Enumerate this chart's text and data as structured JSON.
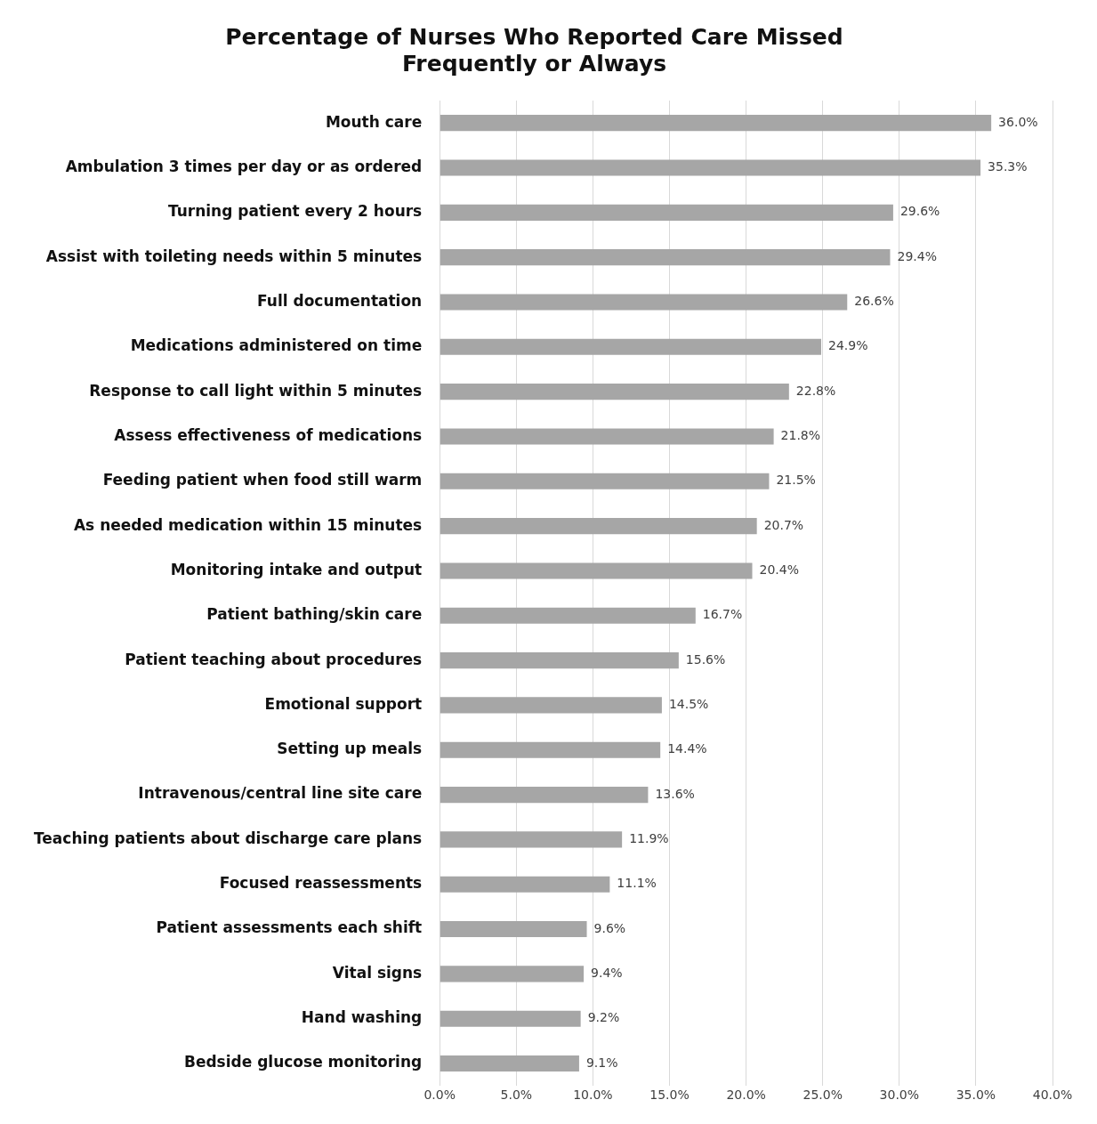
{
  "chart_data": {
    "type": "bar",
    "orientation": "horizontal",
    "title": "Percentage of Nurses Who Reported Care Missed Frequently or Always",
    "categories": [
      "Mouth care",
      "Ambulation 3 times per day or as ordered",
      "Turning patient every 2 hours",
      "Assist with toileting needs within 5 minutes",
      "Full documentation",
      "Medications administered on time",
      "Response to call light within 5 minutes",
      "Assess effectiveness of medications",
      "Feeding patient when food still warm",
      "As needed medication within 15 minutes",
      "Monitoring intake and output",
      "Patient bathing/skin care",
      "Patient teaching about procedures",
      "Emotional support",
      "Setting up meals",
      "Intravenous/central line site care",
      "Teaching patients about discharge care plans",
      "Focused reassessments",
      "Patient assessments each shift",
      "Vital signs",
      "Hand washing",
      "Bedside glucose monitoring"
    ],
    "values": [
      36.0,
      35.3,
      29.6,
      29.4,
      26.6,
      24.9,
      22.8,
      21.8,
      21.5,
      20.7,
      20.4,
      16.7,
      15.6,
      14.5,
      14.4,
      13.6,
      11.9,
      11.1,
      9.6,
      9.4,
      9.2,
      9.1
    ],
    "value_labels": [
      "36.0%",
      "35.3%",
      "29.6%",
      "29.4%",
      "26.6%",
      "24.9%",
      "22.8%",
      "21.8%",
      "21.5%",
      "20.7%",
      "20.4%",
      "16.7%",
      "15.6%",
      "14.5%",
      "14.4%",
      "13.6%",
      "11.9%",
      "11.1%",
      "9.6%",
      "9.4%",
      "9.2%",
      "9.1%"
    ],
    "color": "#a6a6a6",
    "xlim": [
      0,
      40
    ],
    "xticks": [
      {
        "value": 0,
        "label": "0.0%"
      },
      {
        "value": 5,
        "label": "5.0%"
      },
      {
        "value": 10,
        "label": "10.0%"
      },
      {
        "value": 15,
        "label": "15.0%"
      },
      {
        "value": 20,
        "label": "20.0%"
      },
      {
        "value": 25,
        "label": "25.0%"
      },
      {
        "value": 30,
        "label": "30.0%"
      },
      {
        "value": 35,
        "label": "35.0%"
      },
      {
        "value": 40,
        "label": "40.0%"
      }
    ],
    "grid": "x",
    "legend": false
  }
}
